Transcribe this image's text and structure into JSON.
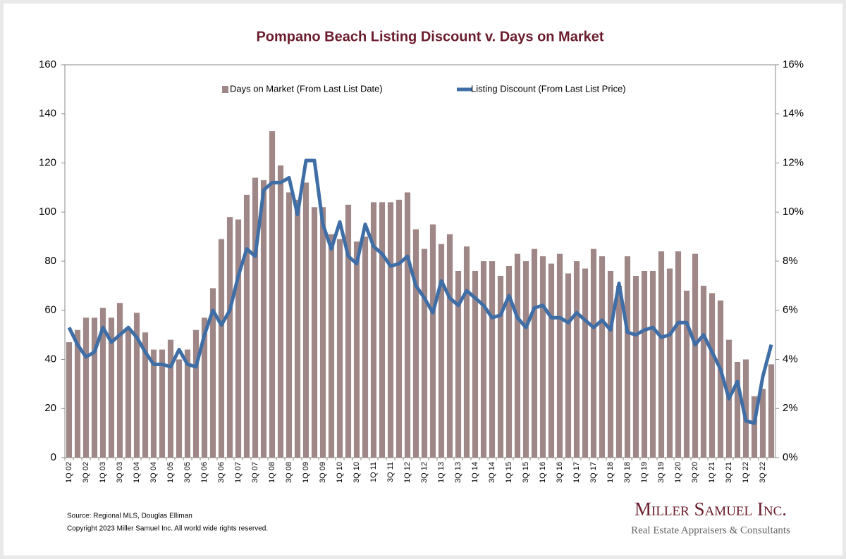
{
  "chart_data": {
    "type": "bar",
    "title": "Pompano Beach Listing Discount v. Days on Market",
    "categories": [
      "1Q 02",
      null,
      "3Q 02",
      null,
      "1Q 03",
      null,
      "3Q 03",
      null,
      "1Q 04",
      null,
      "3Q 04",
      null,
      "1Q 05",
      null,
      "3Q 05",
      null,
      "1Q 06",
      null,
      "3Q 06",
      null,
      "1Q 07",
      null,
      "3Q 07",
      null,
      "1Q 08",
      null,
      "3Q 08",
      null,
      "1Q 09",
      null,
      "3Q 09",
      null,
      "1Q 10",
      null,
      "3Q 10",
      null,
      "1Q 11",
      null,
      "3Q 11",
      null,
      "1Q 12",
      null,
      "3Q 12",
      null,
      "1Q 13",
      null,
      "3Q 13",
      null,
      "1Q 14",
      null,
      "3Q 14",
      null,
      "1Q 15",
      null,
      "3Q 15",
      null,
      "1Q 16",
      null,
      "3Q 16",
      null,
      "1Q 17",
      null,
      "3Q 17",
      null,
      "1Q 18",
      null,
      "3Q 18",
      null,
      "1Q 19",
      null,
      "3Q 19",
      null,
      "1Q 20",
      null,
      "3Q 20",
      null,
      "1Q 21",
      null,
      "3Q 21",
      null,
      "1Q 22",
      null,
      "3Q 22",
      null
    ],
    "series": [
      {
        "name": "Days on Market (From Last List Date)",
        "type": "bar",
        "color": "#a08787",
        "values": [
          47,
          52,
          57,
          57,
          61,
          57,
          63,
          52,
          59,
          51,
          44,
          44,
          48,
          40,
          44,
          52,
          57,
          69,
          89,
          98,
          97,
          107,
          114,
          113,
          133,
          119,
          108,
          105,
          112,
          102,
          102,
          91,
          89,
          103,
          88,
          90,
          104,
          104,
          104,
          105,
          108,
          93,
          85,
          95,
          87,
          91,
          76,
          86,
          76,
          80,
          80,
          74,
          78,
          83,
          80,
          85,
          82,
          79,
          83,
          75,
          80,
          77,
          85,
          82,
          76,
          70,
          82,
          74,
          76,
          76,
          84,
          77,
          84,
          68,
          83,
          70,
          67,
          64,
          48,
          39,
          40,
          25,
          28,
          38
        ]
      },
      {
        "name": "Listing Discount (From Last List Price)",
        "type": "line",
        "color": "#3f6ea6",
        "axis": "y2",
        "values": [
          5.3,
          4.6,
          4.1,
          4.3,
          5.3,
          4.7,
          5.0,
          5.3,
          4.9,
          4.3,
          3.8,
          3.8,
          3.7,
          4.4,
          3.8,
          3.7,
          5.0,
          6.0,
          5.4,
          6.0,
          7.4,
          8.5,
          8.2,
          10.9,
          11.2,
          11.2,
          11.4,
          9.9,
          12.1,
          12.1,
          9.5,
          8.5,
          9.6,
          8.2,
          7.9,
          9.5,
          8.6,
          8.3,
          7.8,
          7.9,
          8.2,
          7.0,
          6.5,
          5.9,
          7.2,
          6.5,
          6.2,
          6.8,
          6.5,
          6.2,
          5.7,
          5.8,
          6.6,
          5.7,
          5.3,
          6.1,
          6.2,
          5.7,
          5.7,
          5.5,
          5.9,
          5.6,
          5.3,
          5.6,
          5.2,
          7.1,
          5.1,
          5.0,
          5.2,
          5.3,
          4.9,
          5.0,
          5.5,
          5.5,
          4.6,
          5.0,
          4.3,
          3.6,
          2.4,
          3.1,
          1.5,
          1.4,
          3.3,
          4.6
        ]
      }
    ],
    "ylim": [
      0,
      160
    ],
    "yticks": [
      0,
      20,
      40,
      60,
      80,
      100,
      120,
      140,
      160
    ],
    "y2lim": [
      0,
      16
    ],
    "y2ticks": [
      {
        "value": 0,
        "label": "0%"
      },
      {
        "value": 2,
        "label": "2%"
      },
      {
        "value": 4,
        "label": "4%"
      },
      {
        "value": 6,
        "label": "6%"
      },
      {
        "value": 8,
        "label": "8%"
      },
      {
        "value": 10,
        "label": "10%"
      },
      {
        "value": 12,
        "label": "12%"
      },
      {
        "value": 14,
        "label": "14%"
      },
      {
        "value": 16,
        "label": "16%"
      }
    ],
    "legend": "top"
  },
  "footer": {
    "source": "Source: Regional MLS, Douglas Elliman",
    "copyright": "Copyright 2023 Miller Samuel Inc.  All world wide rights reserved.",
    "logo": {
      "name": "Miller Samuel Inc.",
      "tagline": "Real Estate Appraisers & Consultants"
    }
  }
}
